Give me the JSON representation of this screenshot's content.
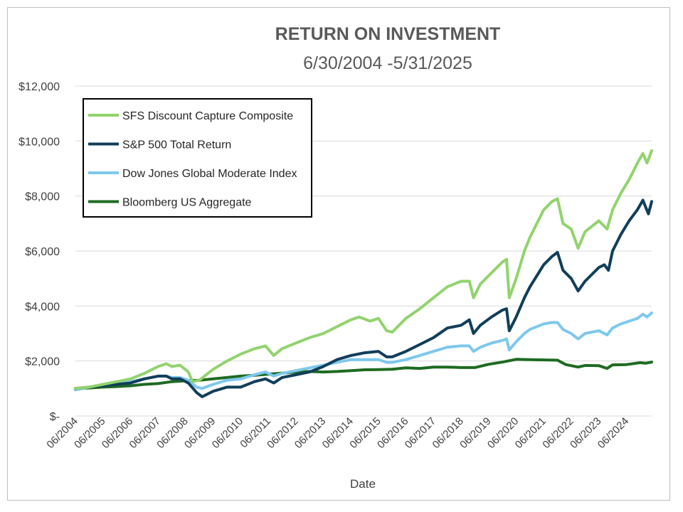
{
  "chart_data": {
    "type": "line",
    "title": "RETURN ON INVESTMENT",
    "subtitle": "6/30/2004  -5/31/2025",
    "xlabel": "Date",
    "ylabel": "",
    "ylim": [
      0,
      12000
    ],
    "y_ticks": [
      {
        "value": 0,
        "label": "$-"
      },
      {
        "value": 2000,
        "label": "$2,000"
      },
      {
        "value": 4000,
        "label": "$4,000"
      },
      {
        "value": 6000,
        "label": "$6,000"
      },
      {
        "value": 8000,
        "label": "$8,000"
      },
      {
        "value": 10000,
        "label": "$10,000"
      },
      {
        "value": 12000,
        "label": "$12,000"
      }
    ],
    "xlim": [
      2004.5,
      2025.42
    ],
    "x_ticks": [
      {
        "value": 2004.5,
        "label": "06/2004"
      },
      {
        "value": 2005.5,
        "label": "06/2005"
      },
      {
        "value": 2006.5,
        "label": "06/2006"
      },
      {
        "value": 2007.5,
        "label": "06/2007"
      },
      {
        "value": 2008.5,
        "label": "06/2008"
      },
      {
        "value": 2009.5,
        "label": "06/2009"
      },
      {
        "value": 2010.5,
        "label": "06/2010"
      },
      {
        "value": 2011.5,
        "label": "06/2011"
      },
      {
        "value": 2012.5,
        "label": "06/2012"
      },
      {
        "value": 2013.5,
        "label": "06/2013"
      },
      {
        "value": 2014.5,
        "label": "06/2014"
      },
      {
        "value": 2015.5,
        "label": "06/2015"
      },
      {
        "value": 2016.5,
        "label": "06/2016"
      },
      {
        "value": 2017.5,
        "label": "06/2017"
      },
      {
        "value": 2018.5,
        "label": "06/2018"
      },
      {
        "value": 2019.5,
        "label": "06/2019"
      },
      {
        "value": 2020.5,
        "label": "06/2020"
      },
      {
        "value": 2021.5,
        "label": "06/2021"
      },
      {
        "value": 2022.5,
        "label": "06/2022"
      },
      {
        "value": 2023.5,
        "label": "06/2023"
      },
      {
        "value": 2024.5,
        "label": "06/2024"
      }
    ],
    "legend_position": "top-left",
    "grid": true,
    "series": [
      {
        "name": "SFS Discount Capture Composite",
        "color": "#92d36e",
        "points": [
          [
            2004.5,
            1000
          ],
          [
            2005.0,
            1050
          ],
          [
            2005.5,
            1150
          ],
          [
            2006.0,
            1250
          ],
          [
            2006.5,
            1350
          ],
          [
            2007.0,
            1550
          ],
          [
            2007.5,
            1800
          ],
          [
            2007.8,
            1900
          ],
          [
            2008.0,
            1800
          ],
          [
            2008.3,
            1850
          ],
          [
            2008.6,
            1600
          ],
          [
            2008.75,
            1250
          ],
          [
            2009.0,
            1300
          ],
          [
            2009.5,
            1700
          ],
          [
            2010.0,
            2000
          ],
          [
            2010.5,
            2250
          ],
          [
            2011.0,
            2450
          ],
          [
            2011.4,
            2550
          ],
          [
            2011.7,
            2200
          ],
          [
            2012.0,
            2450
          ],
          [
            2012.5,
            2650
          ],
          [
            2013.0,
            2850
          ],
          [
            2013.5,
            3000
          ],
          [
            2014.0,
            3250
          ],
          [
            2014.5,
            3500
          ],
          [
            2014.8,
            3600
          ],
          [
            2015.2,
            3450
          ],
          [
            2015.5,
            3550
          ],
          [
            2015.8,
            3100
          ],
          [
            2016.0,
            3050
          ],
          [
            2016.5,
            3550
          ],
          [
            2017.0,
            3900
          ],
          [
            2017.5,
            4300
          ],
          [
            2018.0,
            4700
          ],
          [
            2018.5,
            4900
          ],
          [
            2018.8,
            4900
          ],
          [
            2018.95,
            4300
          ],
          [
            2019.2,
            4800
          ],
          [
            2019.6,
            5200
          ],
          [
            2020.0,
            5600
          ],
          [
            2020.15,
            5700
          ],
          [
            2020.25,
            4300
          ],
          [
            2020.5,
            5000
          ],
          [
            2020.8,
            6000
          ],
          [
            2021.0,
            6500
          ],
          [
            2021.5,
            7500
          ],
          [
            2021.8,
            7800
          ],
          [
            2022.0,
            7900
          ],
          [
            2022.2,
            7000
          ],
          [
            2022.5,
            6800
          ],
          [
            2022.75,
            6100
          ],
          [
            2023.0,
            6700
          ],
          [
            2023.5,
            7100
          ],
          [
            2023.8,
            6800
          ],
          [
            2024.0,
            7500
          ],
          [
            2024.3,
            8100
          ],
          [
            2024.6,
            8600
          ],
          [
            2024.9,
            9200
          ],
          [
            2025.1,
            9550
          ],
          [
            2025.25,
            9200
          ],
          [
            2025.42,
            9650
          ]
        ]
      },
      {
        "name": "S&P 500 Total Return",
        "color": "#113e5a",
        "points": [
          [
            2004.5,
            1000
          ],
          [
            2005.0,
            1050
          ],
          [
            2005.5,
            1100
          ],
          [
            2006.0,
            1150
          ],
          [
            2006.5,
            1200
          ],
          [
            2007.0,
            1350
          ],
          [
            2007.5,
            1450
          ],
          [
            2007.8,
            1450
          ],
          [
            2008.0,
            1350
          ],
          [
            2008.3,
            1350
          ],
          [
            2008.6,
            1200
          ],
          [
            2008.9,
            850
          ],
          [
            2009.1,
            700
          ],
          [
            2009.5,
            900
          ],
          [
            2010.0,
            1050
          ],
          [
            2010.5,
            1050
          ],
          [
            2011.0,
            1250
          ],
          [
            2011.4,
            1350
          ],
          [
            2011.7,
            1200
          ],
          [
            2012.0,
            1400
          ],
          [
            2012.5,
            1500
          ],
          [
            2013.0,
            1600
          ],
          [
            2013.5,
            1800
          ],
          [
            2014.0,
            2050
          ],
          [
            2014.5,
            2200
          ],
          [
            2015.0,
            2300
          ],
          [
            2015.5,
            2350
          ],
          [
            2015.8,
            2150
          ],
          [
            2016.0,
            2150
          ],
          [
            2016.5,
            2350
          ],
          [
            2017.0,
            2600
          ],
          [
            2017.5,
            2850
          ],
          [
            2018.0,
            3200
          ],
          [
            2018.5,
            3300
          ],
          [
            2018.8,
            3500
          ],
          [
            2018.95,
            3000
          ],
          [
            2019.2,
            3300
          ],
          [
            2019.6,
            3600
          ],
          [
            2020.0,
            3850
          ],
          [
            2020.15,
            3900
          ],
          [
            2020.25,
            3100
          ],
          [
            2020.5,
            3600
          ],
          [
            2020.8,
            4300
          ],
          [
            2021.0,
            4700
          ],
          [
            2021.5,
            5500
          ],
          [
            2021.8,
            5800
          ],
          [
            2022.0,
            5950
          ],
          [
            2022.2,
            5300
          ],
          [
            2022.5,
            5000
          ],
          [
            2022.75,
            4550
          ],
          [
            2023.0,
            4900
          ],
          [
            2023.5,
            5400
          ],
          [
            2023.7,
            5500
          ],
          [
            2023.85,
            5300
          ],
          [
            2024.0,
            6000
          ],
          [
            2024.3,
            6600
          ],
          [
            2024.6,
            7100
          ],
          [
            2024.9,
            7500
          ],
          [
            2025.1,
            7850
          ],
          [
            2025.3,
            7350
          ],
          [
            2025.42,
            7800
          ]
        ]
      },
      {
        "name": "Dow Jones Global Moderate Index",
        "color": "#7ec8ed",
        "points": [
          [
            2004.5,
            950
          ],
          [
            2005.0,
            1050
          ],
          [
            2005.5,
            1120
          ],
          [
            2006.0,
            1200
          ],
          [
            2006.5,
            1250
          ],
          [
            2007.0,
            1350
          ],
          [
            2007.5,
            1450
          ],
          [
            2007.8,
            1450
          ],
          [
            2008.0,
            1400
          ],
          [
            2008.3,
            1400
          ],
          [
            2008.6,
            1300
          ],
          [
            2008.9,
            1050
          ],
          [
            2009.1,
            1000
          ],
          [
            2009.5,
            1150
          ],
          [
            2010.0,
            1300
          ],
          [
            2010.5,
            1350
          ],
          [
            2011.0,
            1500
          ],
          [
            2011.4,
            1600
          ],
          [
            2011.7,
            1450
          ],
          [
            2012.0,
            1550
          ],
          [
            2012.5,
            1650
          ],
          [
            2013.0,
            1750
          ],
          [
            2013.5,
            1850
          ],
          [
            2014.0,
            1950
          ],
          [
            2014.5,
            2050
          ],
          [
            2015.0,
            2050
          ],
          [
            2015.5,
            2050
          ],
          [
            2015.8,
            1950
          ],
          [
            2016.0,
            1950
          ],
          [
            2016.5,
            2050
          ],
          [
            2017.0,
            2200
          ],
          [
            2017.5,
            2350
          ],
          [
            2018.0,
            2500
          ],
          [
            2018.5,
            2550
          ],
          [
            2018.8,
            2550
          ],
          [
            2018.95,
            2350
          ],
          [
            2019.2,
            2500
          ],
          [
            2019.6,
            2650
          ],
          [
            2020.0,
            2750
          ],
          [
            2020.15,
            2800
          ],
          [
            2020.25,
            2400
          ],
          [
            2020.5,
            2700
          ],
          [
            2020.8,
            3000
          ],
          [
            2021.0,
            3150
          ],
          [
            2021.5,
            3350
          ],
          [
            2021.8,
            3400
          ],
          [
            2022.0,
            3400
          ],
          [
            2022.2,
            3150
          ],
          [
            2022.5,
            3000
          ],
          [
            2022.75,
            2800
          ],
          [
            2023.0,
            3000
          ],
          [
            2023.5,
            3100
          ],
          [
            2023.8,
            2950
          ],
          [
            2024.0,
            3200
          ],
          [
            2024.3,
            3350
          ],
          [
            2024.6,
            3450
          ],
          [
            2024.9,
            3550
          ],
          [
            2025.1,
            3700
          ],
          [
            2025.25,
            3600
          ],
          [
            2025.42,
            3750
          ]
        ]
      },
      {
        "name": "Bloomberg US Aggregate",
        "color": "#1e6b22",
        "points": [
          [
            2004.5,
            1000
          ],
          [
            2005.0,
            1020
          ],
          [
            2005.5,
            1050
          ],
          [
            2006.0,
            1070
          ],
          [
            2006.5,
            1100
          ],
          [
            2007.0,
            1150
          ],
          [
            2007.5,
            1180
          ],
          [
            2008.0,
            1250
          ],
          [
            2008.5,
            1280
          ],
          [
            2009.0,
            1300
          ],
          [
            2009.5,
            1350
          ],
          [
            2010.0,
            1400
          ],
          [
            2010.5,
            1450
          ],
          [
            2011.0,
            1480
          ],
          [
            2011.5,
            1520
          ],
          [
            2012.0,
            1560
          ],
          [
            2012.5,
            1600
          ],
          [
            2013.0,
            1620
          ],
          [
            2013.5,
            1600
          ],
          [
            2014.0,
            1620
          ],
          [
            2014.5,
            1650
          ],
          [
            2015.0,
            1680
          ],
          [
            2015.5,
            1690
          ],
          [
            2016.0,
            1700
          ],
          [
            2016.5,
            1750
          ],
          [
            2017.0,
            1730
          ],
          [
            2017.5,
            1780
          ],
          [
            2018.0,
            1780
          ],
          [
            2018.5,
            1760
          ],
          [
            2019.0,
            1760
          ],
          [
            2019.5,
            1880
          ],
          [
            2020.0,
            1960
          ],
          [
            2020.5,
            2060
          ],
          [
            2021.0,
            2050
          ],
          [
            2021.5,
            2040
          ],
          [
            2022.0,
            2030
          ],
          [
            2022.3,
            1870
          ],
          [
            2022.75,
            1780
          ],
          [
            2023.0,
            1840
          ],
          [
            2023.5,
            1830
          ],
          [
            2023.8,
            1730
          ],
          [
            2024.0,
            1860
          ],
          [
            2024.5,
            1870
          ],
          [
            2025.0,
            1940
          ],
          [
            2025.2,
            1920
          ],
          [
            2025.42,
            1960
          ]
        ]
      }
    ]
  }
}
